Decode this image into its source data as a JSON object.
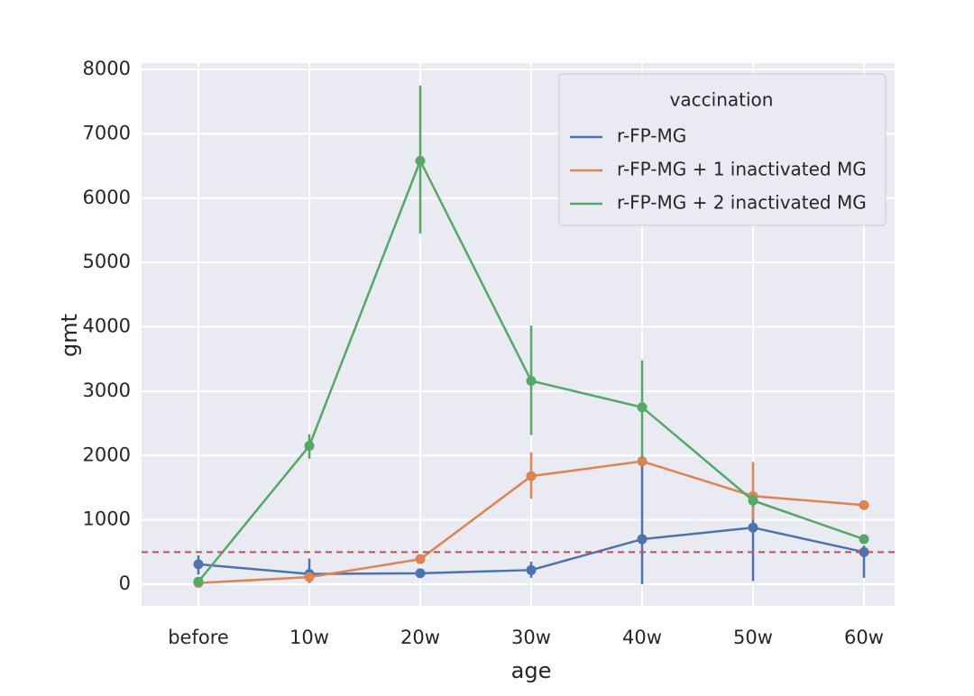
{
  "chart_data": {
    "type": "line",
    "x_label": "age",
    "y_label": "gmt",
    "categories": [
      "before",
      "10w",
      "20w",
      "30w",
      "40w",
      "50w",
      "60w"
    ],
    "ylim": [
      -336,
      8098
    ],
    "yticks": [
      0,
      1000,
      2000,
      3000,
      4000,
      5000,
      6000,
      7000,
      8000
    ],
    "grid": true,
    "legend_title": "vaccination",
    "legend_position": "upper right",
    "hline": {
      "value": 500,
      "color": "#c44e52"
    },
    "series": [
      {
        "name": "r-FP-MG",
        "color": "#4c72b0",
        "values": [
          310,
          160,
          170,
          220,
          700,
          880,
          500
        ],
        "err_low": [
          150,
          20,
          130,
          100,
          0,
          50,
          100
        ],
        "err_high": [
          450,
          400,
          220,
          350,
          1950,
          1380,
          600
        ]
      },
      {
        "name": "r-FP-MG + 1 inactivated MG",
        "color": "#dd8452",
        "values": [
          20,
          110,
          390,
          1680,
          1910,
          1370,
          1230
        ],
        "err_low": [
          0,
          60,
          330,
          1330,
          1850,
          1000,
          1180
        ],
        "err_high": [
          40,
          160,
          450,
          2050,
          1970,
          1900,
          1280
        ]
      },
      {
        "name": "r-FP-MG + 2 inactivated MG",
        "color": "#55a868",
        "values": [
          40,
          2150,
          6580,
          3160,
          2750,
          1300,
          700
        ],
        "err_low": [
          0,
          1950,
          5450,
          2320,
          1950,
          1200,
          650
        ],
        "err_high": [
          80,
          2330,
          7750,
          4020,
          3480,
          1400,
          750
        ]
      }
    ]
  }
}
